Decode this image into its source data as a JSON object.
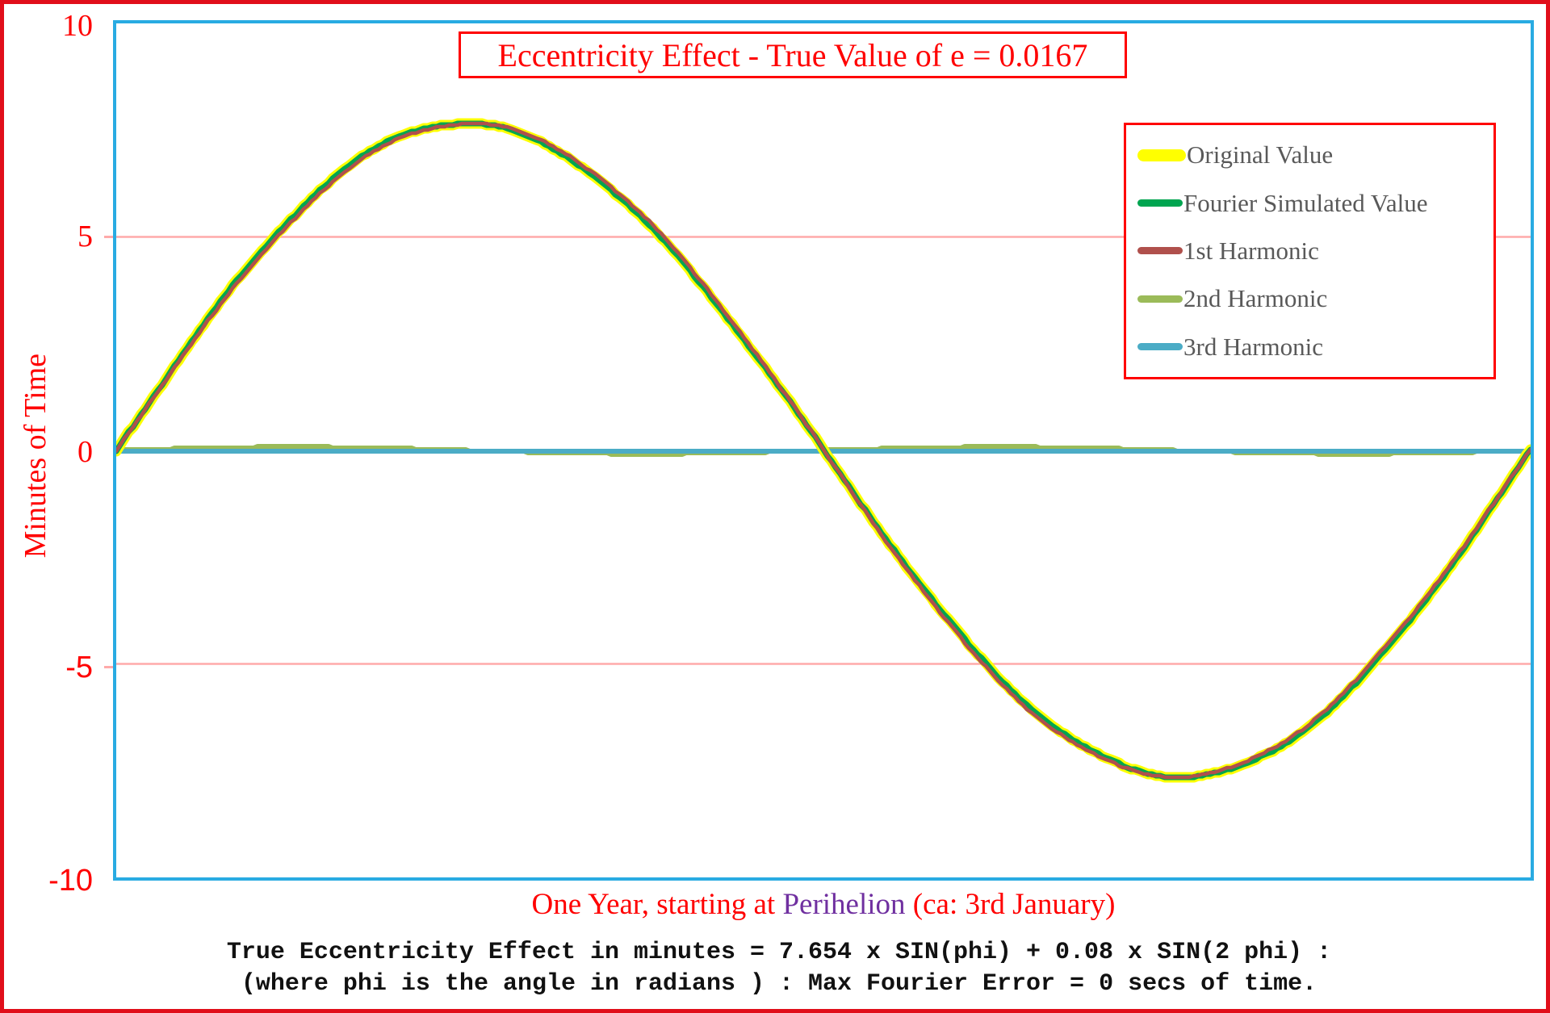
{
  "frame": {
    "border_color": "#e10e1a",
    "background": "#ffffff"
  },
  "title": {
    "text": "Eccentricity Effect - True Value of e = 0.0167",
    "color": "#ff0000",
    "box_border_color": "#ff0000"
  },
  "y_axis": {
    "label": "Minutes of Time",
    "color": "#ff0000",
    "ticks": [
      "10",
      "5",
      "0",
      "-5",
      "-10"
    ]
  },
  "x_axis": {
    "label_prefix": "One Year, starting at ",
    "label_highlight": "Perihelion",
    "label_suffix": " (ca: 3rd January)",
    "color": "#ff0000",
    "highlight_color": "#7030a0"
  },
  "legend": {
    "border_color": "#ff0000",
    "text_color": "#595959",
    "items": [
      {
        "label": "Original Value",
        "color": "#ffff00",
        "thick": true
      },
      {
        "label": "Fourier Simulated Value",
        "color": "#00a550",
        "thick": false
      },
      {
        "label": "1st Harmonic",
        "color": "#b0504c",
        "thick": false
      },
      {
        "label": "2nd Harmonic",
        "color": "#9bbb59",
        "thick": false
      },
      {
        "label": "3rd Harmonic",
        "color": "#4bacc6",
        "thick": false
      }
    ]
  },
  "footnote": {
    "line1": "True Eccentricity Effect in minutes = 7.654 x SIN(phi) + 0.08 x SIN(2 phi) :",
    "line2": "(where phi is the angle in radians ) : Max Fourier Error = 0 secs of time."
  },
  "chart_data": {
    "type": "line",
    "title": "Eccentricity Effect - True Value of e = 0.0167",
    "xlabel": "One Year, starting at Perihelion (ca: 3rd January)",
    "ylabel": "Minutes of Time",
    "ylim": [
      -10,
      10
    ],
    "yticks": [
      10,
      5,
      0,
      -5,
      -10
    ],
    "gridlines_y": [
      5,
      -5
    ],
    "grid_color": "#ffaaaa",
    "plot_border_color": "#29abe2",
    "x_range": "phi from 0 to 2*pi over one year starting at perihelion",
    "equation": "7.654 x SIN(phi) + 0.08 x SIN(2 phi)",
    "max_fourier_error": "0 secs of time",
    "peak_value_minutes": 7.66,
    "series": [
      {
        "name": "Original Value",
        "color": "#ffff00",
        "stroke_width": 13,
        "components": [
          {
            "amplitude": 7.654,
            "frequency": 1
          },
          {
            "amplitude": 0.08,
            "frequency": 2
          }
        ]
      },
      {
        "name": "Fourier Simulated Value",
        "color": "#00a550",
        "stroke_width": 7,
        "components": [
          {
            "amplitude": 7.654,
            "frequency": 1
          },
          {
            "amplitude": 0.08,
            "frequency": 2
          }
        ]
      },
      {
        "name": "1st Harmonic",
        "color": "#b0504c",
        "stroke_width": 4.5,
        "components": [
          {
            "amplitude": 7.654,
            "frequency": 1
          }
        ]
      },
      {
        "name": "2nd Harmonic",
        "color": "#9bbb59",
        "stroke_width": 6,
        "components": [
          {
            "amplitude": 0.08,
            "frequency": 2
          }
        ]
      },
      {
        "name": "3rd Harmonic",
        "color": "#4bacc6",
        "stroke_width": 6,
        "components": [
          {
            "amplitude": 0.0,
            "frequency": 3
          }
        ]
      }
    ],
    "draw_order": [
      3,
      4,
      0,
      1,
      2
    ],
    "sampled_points": {
      "t_fraction_of_year": [
        0,
        0.0833,
        0.1667,
        0.25,
        0.3333,
        0.4167,
        0.5,
        0.5833,
        0.6667,
        0.75,
        0.8333,
        0.9167,
        1
      ],
      "original_value_minutes": [
        0,
        3.9,
        6.7,
        7.65,
        6.56,
        3.76,
        0,
        -3.9,
        -6.7,
        -7.65,
        -6.56,
        -3.76,
        0
      ],
      "first_harmonic_minutes": [
        0,
        3.83,
        6.63,
        7.65,
        6.63,
        3.83,
        0,
        -3.83,
        -6.63,
        -7.65,
        -6.63,
        -3.83,
        0
      ],
      "second_harmonic_minutes": [
        0,
        0.07,
        0.07,
        0,
        -0.07,
        -0.07,
        0,
        0.07,
        0.07,
        0,
        -0.07,
        -0.07,
        0
      ],
      "third_harmonic_minutes": [
        0,
        0,
        0,
        0,
        0,
        0,
        0,
        0,
        0,
        0,
        0,
        0,
        0
      ]
    }
  }
}
